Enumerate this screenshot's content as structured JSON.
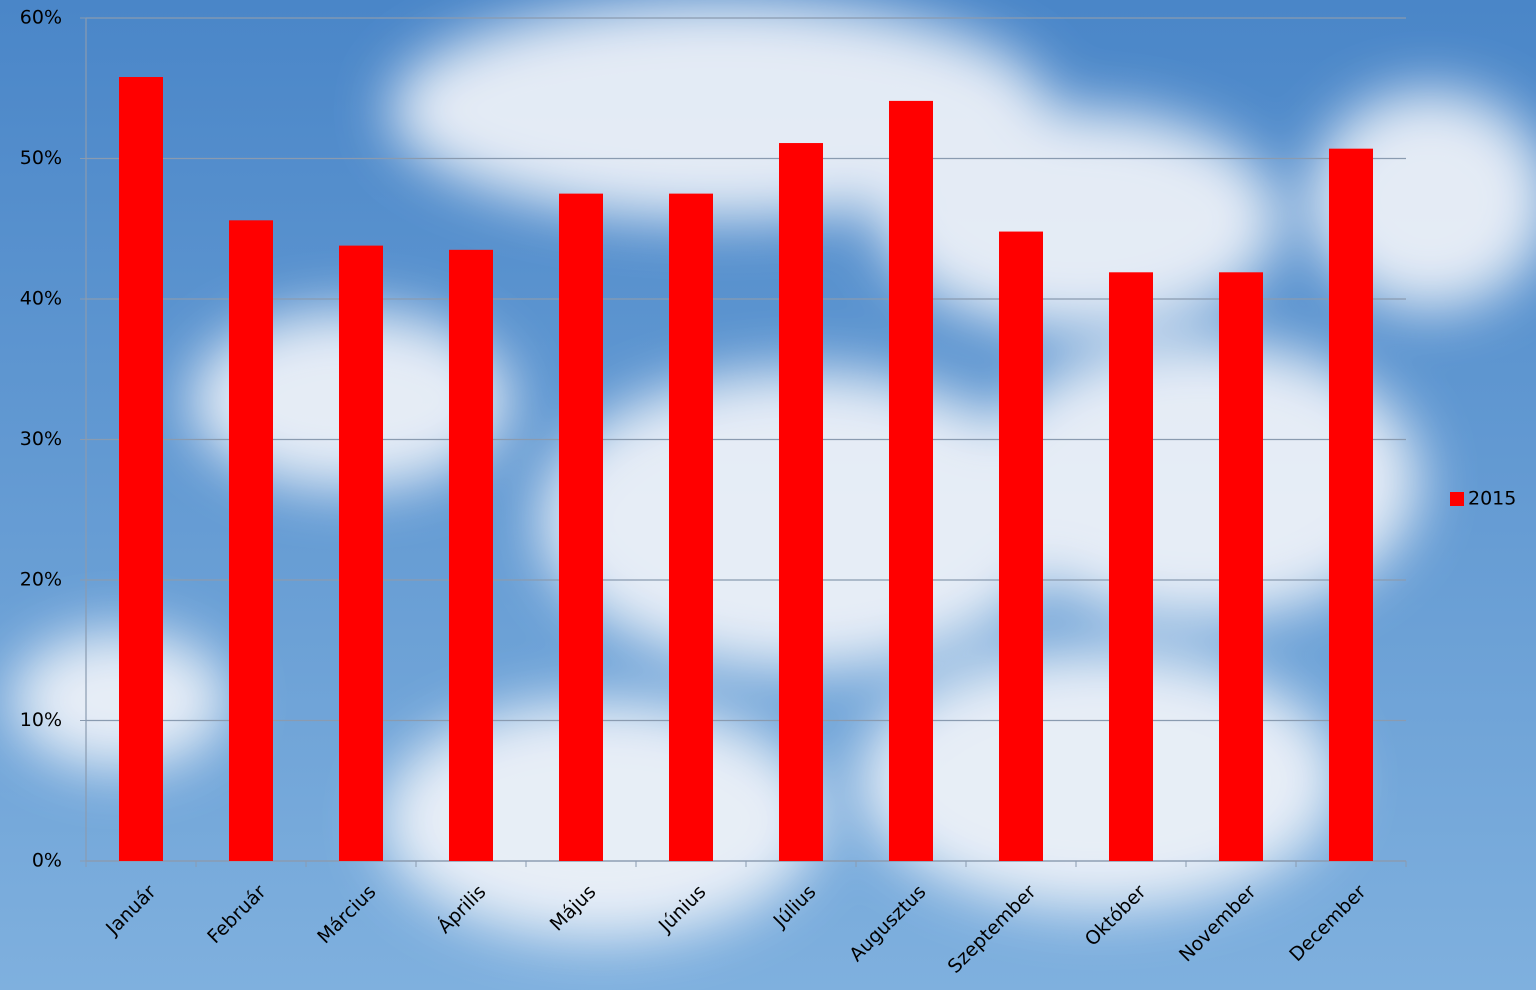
{
  "chart_data": {
    "type": "bar",
    "categories": [
      "Január",
      "Február",
      "Március",
      "Április",
      "Május",
      "Június",
      "Július",
      "Augusztus",
      "Szeptember",
      "Október",
      "November",
      "December"
    ],
    "series": [
      {
        "name": "2015",
        "color": "#ff0000",
        "values": [
          55.8,
          45.6,
          43.8,
          43.5,
          47.5,
          47.5,
          51.1,
          54.1,
          44.8,
          41.9,
          41.9,
          50.7
        ]
      }
    ],
    "ylim": [
      0,
      60
    ],
    "yticks": [
      {
        "value": 0,
        "label": "0%"
      },
      {
        "value": 10,
        "label": "10%"
      },
      {
        "value": 20,
        "label": "20%"
      },
      {
        "value": 30,
        "label": "30%"
      },
      {
        "value": 40,
        "label": "40%"
      },
      {
        "value": 50,
        "label": "50%"
      },
      {
        "value": 60,
        "label": "60%"
      }
    ],
    "grid": true,
    "legend": "right"
  }
}
